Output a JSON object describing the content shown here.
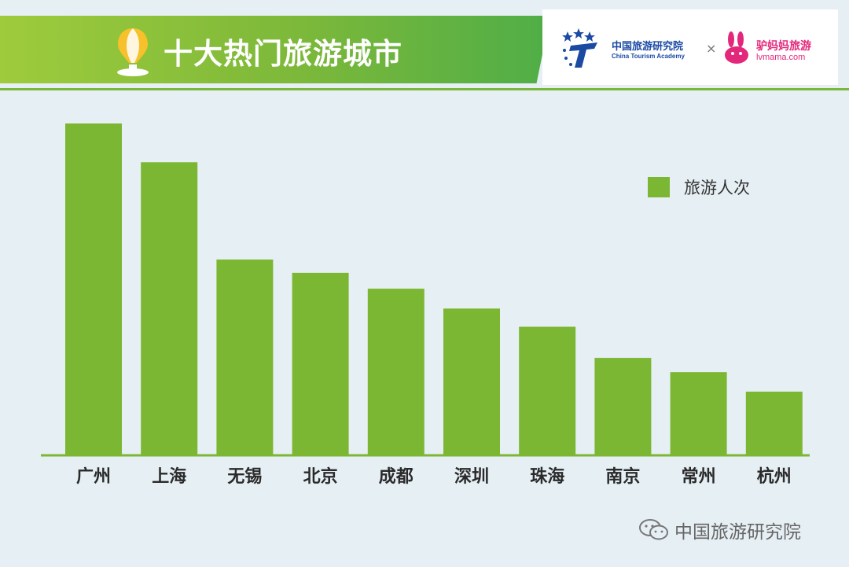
{
  "header": {
    "title": "十大热门旅游城市",
    "partner_left_name": "中国旅游研究院",
    "partner_left_english": "China Tourism Academy",
    "times_sign": "×",
    "partner_right_name": "驴妈妈旅游",
    "partner_right_url": "lvmama.com"
  },
  "watermark": {
    "text": "中国旅游研究院"
  },
  "colors": {
    "bar": "#7cb733",
    "background": "#e6eff4",
    "title_band": "#7cb83a"
  },
  "icons": [
    "hot-air-balloon-icon",
    "cta-logo-icon",
    "rabbit-logo-icon",
    "wechat-icon"
  ],
  "chart_data": {
    "type": "bar",
    "title": "",
    "xlabel": "",
    "ylabel": "",
    "categories": [
      "广州",
      "上海",
      "无锡",
      "北京",
      "成都",
      "深圳",
      "珠海",
      "南京",
      "常州",
      "杭州"
    ],
    "series": [
      {
        "name": "旅游人次",
        "values": [
          100,
          88.3,
          58.9,
          54.9,
          50.1,
          44.1,
          38.6,
          29.2,
          24.9,
          19.0
        ]
      }
    ],
    "ylim": [
      0,
      100
    ],
    "grid": false,
    "legend": "top-right"
  }
}
